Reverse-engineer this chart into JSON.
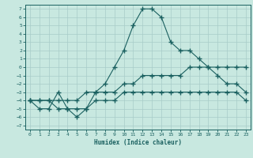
{
  "title": "",
  "xlabel": "Humidex (Indice chaleur)",
  "background_color": "#c8e8e0",
  "grid_color": "#a8ccc8",
  "line_color": "#1a6060",
  "xlim": [
    -0.5,
    23.5
  ],
  "ylim": [
    -7.5,
    7.5
  ],
  "xticks": [
    0,
    1,
    2,
    3,
    4,
    5,
    6,
    7,
    8,
    9,
    10,
    11,
    12,
    13,
    14,
    15,
    16,
    17,
    18,
    19,
    20,
    21,
    22,
    23
  ],
  "yticks": [
    -7,
    -6,
    -5,
    -4,
    -3,
    -2,
    -1,
    0,
    1,
    2,
    3,
    4,
    5,
    6,
    7
  ],
  "line1_x": [
    0,
    1,
    2,
    3,
    4,
    5,
    6,
    7,
    8,
    9,
    10,
    11,
    12,
    13,
    14,
    15,
    16,
    17,
    18,
    19,
    20,
    21,
    22,
    23
  ],
  "line1_y": [
    -4,
    -5,
    -5,
    -3,
    -5,
    -6,
    -5,
    -3,
    -2,
    0,
    2,
    5,
    7,
    7,
    6,
    3,
    2,
    2,
    1,
    0,
    -1,
    -2,
    -2,
    -3
  ],
  "line2_x": [
    0,
    1,
    2,
    3,
    4,
    5,
    6,
    7,
    8,
    9,
    10,
    11,
    12,
    13,
    14,
    15,
    16,
    17,
    18,
    19,
    20,
    21,
    22,
    23
  ],
  "line2_y": [
    -4,
    -4,
    -4,
    -4,
    -4,
    -4,
    -3,
    -3,
    -3,
    -3,
    -2,
    -2,
    -1,
    -1,
    -1,
    -1,
    -1,
    0,
    0,
    0,
    0,
    0,
    0,
    0
  ],
  "line3_x": [
    0,
    1,
    2,
    3,
    4,
    5,
    6,
    7,
    8,
    9,
    10,
    11,
    12,
    13,
    14,
    15,
    16,
    17,
    18,
    19,
    20,
    21,
    22,
    23
  ],
  "line3_y": [
    -4,
    -4,
    -4,
    -5,
    -5,
    -5,
    -5,
    -4,
    -4,
    -4,
    -3,
    -3,
    -3,
    -3,
    -3,
    -3,
    -3,
    -3,
    -3,
    -3,
    -3,
    -3,
    -3,
    -4
  ]
}
